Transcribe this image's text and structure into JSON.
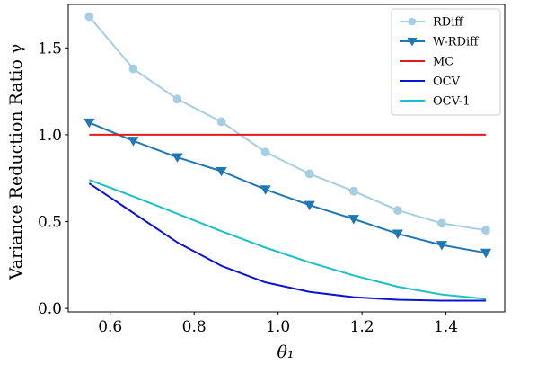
{
  "chart_data": {
    "type": "line",
    "xlabel": "θ₁",
    "ylabel": "Variance Reduction Ratio  γ",
    "xlim": [
      0.5,
      1.54
    ],
    "ylim": [
      -0.02,
      1.75
    ],
    "xticks": [
      0.6,
      0.8,
      1.0,
      1.2,
      1.4
    ],
    "xtick_labels": [
      "0.6",
      "0.8",
      "1.0",
      "1.2",
      "1.4"
    ],
    "yticks": [
      0.0,
      0.5,
      1.0,
      1.5
    ],
    "ytick_labels": [
      "0.0",
      "0.5",
      "1.0",
      "1.5"
    ],
    "grid": false,
    "legend_position": "top-right",
    "series": [
      {
        "name": "RDiff",
        "color": "#a6cee3",
        "marker": "circle",
        "x": [
          0.55,
          0.655,
          0.76,
          0.865,
          0.97,
          1.075,
          1.18,
          1.285,
          1.39,
          1.495
        ],
        "y": [
          1.68,
          1.38,
          1.205,
          1.075,
          0.9,
          0.775,
          0.675,
          0.565,
          0.49,
          0.45
        ]
      },
      {
        "name": "W-RDiff",
        "color": "#1f78b4",
        "marker": "triangle-down",
        "x": [
          0.55,
          0.655,
          0.76,
          0.865,
          0.97,
          1.075,
          1.18,
          1.285,
          1.39,
          1.495
        ],
        "y": [
          1.07,
          0.965,
          0.87,
          0.79,
          0.685,
          0.595,
          0.515,
          0.43,
          0.365,
          0.32
        ]
      },
      {
        "name": "MC",
        "color": "#e31a1c",
        "marker": "none",
        "x": [
          0.55,
          1.495
        ],
        "y": [
          1.0,
          1.0
        ]
      },
      {
        "name": "OCV",
        "color": "#0a14d2",
        "marker": "none",
        "x": [
          0.55,
          0.655,
          0.76,
          0.865,
          0.97,
          1.075,
          1.18,
          1.285,
          1.39,
          1.495
        ],
        "y": [
          0.72,
          0.55,
          0.38,
          0.245,
          0.15,
          0.095,
          0.065,
          0.05,
          0.045,
          0.045
        ]
      },
      {
        "name": "OCV-1",
        "color": "#1ac0c6",
        "marker": "none",
        "x": [
          0.55,
          0.655,
          0.76,
          0.865,
          0.97,
          1.075,
          1.18,
          1.285,
          1.39,
          1.495
        ],
        "y": [
          0.74,
          0.645,
          0.545,
          0.445,
          0.35,
          0.265,
          0.19,
          0.125,
          0.08,
          0.055
        ]
      }
    ]
  }
}
